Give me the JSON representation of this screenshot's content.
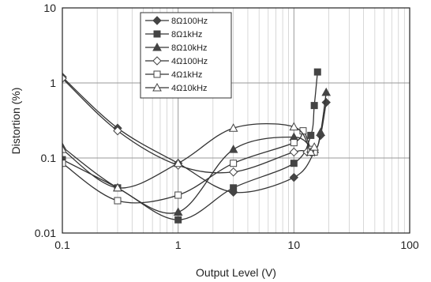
{
  "chart_data": {
    "type": "line",
    "xlabel": "Output Level (V)",
    "ylabel": "Distortion (%)",
    "xscale": "log",
    "yscale": "log",
    "xlim": [
      0.1,
      100
    ],
    "ylim": [
      0.01,
      10
    ],
    "xticks": [
      "0.1",
      "1",
      "10",
      "100"
    ],
    "yticks": [
      "10",
      "1",
      "0.1",
      "0.01"
    ],
    "grid": true,
    "legend_position": "top-center",
    "series": [
      {
        "name": "8Ω100Hz",
        "marker": "diamond-filled",
        "x": [
          0.1,
          0.3,
          1,
          3,
          10,
          15,
          17,
          19
        ],
        "y": [
          1.2,
          0.25,
          0.085,
          0.035,
          0.055,
          0.12,
          0.2,
          0.55
        ]
      },
      {
        "name": "8Ω1kHz",
        "marker": "square-filled",
        "x": [
          0.1,
          0.3,
          1,
          3,
          10,
          14,
          15,
          16
        ],
        "y": [
          0.095,
          0.04,
          0.015,
          0.04,
          0.085,
          0.2,
          0.5,
          1.4
        ]
      },
      {
        "name": "8Ω10kHz",
        "marker": "triangle-filled",
        "x": [
          0.1,
          0.3,
          1,
          3,
          10,
          15,
          17,
          19
        ],
        "y": [
          0.14,
          0.04,
          0.019,
          0.13,
          0.19,
          0.13,
          0.22,
          0.75
        ]
      },
      {
        "name": "4Ω100Hz",
        "marker": "diamond-open",
        "x": [
          0.1,
          0.3,
          1,
          3,
          10,
          13,
          14
        ],
        "y": [
          1.15,
          0.23,
          0.08,
          0.065,
          0.12,
          0.12,
          0.12
        ]
      },
      {
        "name": "4Ω1kHz",
        "marker": "square-open",
        "x": [
          0.1,
          0.3,
          1,
          3,
          10,
          12,
          14,
          15
        ],
        "y": [
          0.085,
          0.027,
          0.032,
          0.085,
          0.16,
          0.23,
          0.13,
          0.12
        ]
      },
      {
        "name": "4Ω10kHz",
        "marker": "triangle-open",
        "x": [
          0.1,
          0.3,
          1,
          3,
          10,
          14,
          15
        ],
        "y": [
          0.13,
          0.04,
          0.085,
          0.25,
          0.26,
          0.12,
          0.14
        ]
      }
    ]
  }
}
